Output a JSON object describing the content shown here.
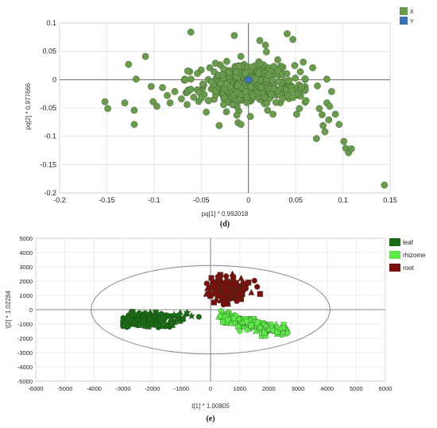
{
  "chart_data": [
    {
      "type": "scatter",
      "title": "",
      "caption": "(d)",
      "xlabel": "pq[1] * 0.992018",
      "ylabel": "pq[2] * 0.977666",
      "xlim": [
        -0.2,
        0.15
      ],
      "ylim": [
        -0.2,
        0.1
      ],
      "x_ticks": [
        "-0.2",
        "-0.15",
        "-0.1",
        "-0.05",
        "0",
        "0.05",
        "0.1",
        "0.15"
      ],
      "y_ticks": [
        "0.1",
        "0.05",
        "0",
        "-0.05",
        "-0.1",
        "-0.15",
        "-0.2"
      ],
      "grid": true,
      "legend_position": "top-right",
      "series": [
        {
          "name": "X",
          "color": "#6a9a4e",
          "marker": "circle",
          "points": [
            [
              -0.152,
              -0.039
            ],
            [
              -0.149,
              -0.051
            ],
            [
              -0.131,
              -0.041
            ],
            [
              -0.127,
              0.027
            ],
            [
              -0.121,
              -0.054
            ],
            [
              -0.121,
              -0.079
            ],
            [
              -0.119,
              0.001
            ],
            [
              -0.109,
              0.041
            ],
            [
              -0.103,
              -0.012
            ],
            [
              -0.101,
              -0.039
            ],
            [
              -0.097,
              -0.047
            ],
            [
              -0.091,
              -0.014
            ],
            [
              -0.086,
              -0.028
            ],
            [
              -0.083,
              -0.041
            ],
            [
              -0.078,
              -0.021
            ],
            [
              -0.071,
              -0.034
            ],
            [
              -0.065,
              -0.044
            ],
            [
              -0.061,
              -0.017
            ],
            [
              -0.061,
              0.001
            ],
            [
              -0.058,
              -0.031
            ],
            [
              -0.054,
              0.011
            ],
            [
              -0.061,
              0.084
            ],
            [
              -0.041,
              0.021
            ],
            [
              -0.035,
              0.029
            ],
            [
              -0.031,
              -0.081
            ],
            [
              -0.015,
              0.078
            ],
            [
              -0.011,
              -0.076
            ],
            [
              -0.008,
              -0.079
            ],
            [
              0.012,
              0.069
            ],
            [
              0.018,
              0.061
            ],
            [
              0.019,
              0.049
            ],
            [
              0.026,
              -0.061
            ],
            [
              0.031,
              0.035
            ],
            [
              0.041,
              0.081
            ],
            [
              0.047,
              0.071
            ],
            [
              0.049,
              0.025
            ],
            [
              0.051,
              -0.061
            ],
            [
              0.054,
              -0.051
            ],
            [
              0.058,
              0.031
            ],
            [
              0.061,
              -0.037
            ],
            [
              0.068,
              0.021
            ],
            [
              0.072,
              -0.104
            ],
            [
              0.073,
              -0.011
            ],
            [
              0.075,
              -0.051
            ],
            [
              0.078,
              -0.062
            ],
            [
              0.079,
              -0.081
            ],
            [
              0.081,
              -0.092
            ],
            [
              0.083,
              0.001
            ],
            [
              0.083,
              -0.041
            ],
            [
              0.086,
              -0.047
            ],
            [
              0.085,
              -0.071
            ],
            [
              0.088,
              -0.021
            ],
            [
              0.092,
              -0.061
            ],
            [
              0.096,
              -0.079
            ],
            [
              0.101,
              -0.109
            ],
            [
              0.103,
              -0.121
            ],
            [
              0.106,
              -0.129
            ],
            [
              0.109,
              -0.122
            ],
            [
              0.144,
              -0.186
            ]
          ]
        },
        {
          "name": "Y",
          "color": "#3a70b8",
          "marker": "circle",
          "points": [
            [
              0.0,
              0.0
            ]
          ]
        }
      ]
    },
    {
      "type": "scatter",
      "title": "",
      "caption": "(e)",
      "xlabel": "t[1] * 1.00805",
      "ylabel": "t[2] * 1.02284",
      "xlim": [
        -6000,
        6000
      ],
      "ylim": [
        -5000,
        5000
      ],
      "x_ticks": [
        "-6000",
        "-5000",
        "-4000",
        "-3000",
        "-2000",
        "-1000",
        "0",
        "1000",
        "2000",
        "3000",
        "4000",
        "5000",
        "6000"
      ],
      "y_ticks": [
        "5000",
        "4000",
        "3000",
        "2000",
        "1000",
        "0",
        "-1000",
        "-2000",
        "-3000",
        "-4000",
        "-5000"
      ],
      "grid": true,
      "legend_position": "top-right",
      "ellipse": {
        "rx": 4100,
        "ry": 3100
      },
      "series": [
        {
          "name": "leaf",
          "color": "#1a6b17",
          "markers": [
            "circle",
            "square",
            "triangle",
            "star"
          ],
          "cluster": {
            "cx": -2200,
            "cy": -700,
            "sx": 500,
            "sy": 250
          },
          "points": [
            [
              -2900,
              -780
            ],
            [
              -2800,
              -600
            ],
            [
              -2650,
              -950
            ],
            [
              -2500,
              -400
            ],
            [
              -2300,
              -900
            ],
            [
              -2100,
              -650
            ],
            [
              -2000,
              -1000
            ],
            [
              -1900,
              -450
            ],
            [
              -1700,
              -700
            ],
            [
              -1550,
              -400
            ],
            [
              -1400,
              -800
            ],
            [
              -1250,
              -350
            ],
            [
              -1100,
              -400
            ],
            [
              -950,
              -650
            ],
            [
              -850,
              -300
            ],
            [
              -650,
              -450
            ],
            [
              -400,
              -500
            ],
            [
              -2650,
              -350
            ],
            [
              -2450,
              -1100
            ],
            [
              -1850,
              -1050
            ],
            [
              -1600,
              -550
            ],
            [
              -1350,
              -950
            ],
            [
              -1050,
              -800
            ],
            [
              -800,
              -200
            ]
          ]
        },
        {
          "name": "rhizome",
          "color": "#5ee84a",
          "markers": [
            "circle",
            "square",
            "triangle"
          ],
          "cluster": {
            "cx": 1200,
            "cy": -1100,
            "sx": 500,
            "sy": 280
          },
          "points": [
            [
              500,
              -500
            ],
            [
              600,
              -700
            ],
            [
              700,
              -950
            ],
            [
              800,
              -600
            ],
            [
              950,
              -1200
            ],
            [
              1100,
              -850
            ],
            [
              1250,
              -1400
            ],
            [
              1400,
              -1100
            ],
            [
              1550,
              -1500
            ],
            [
              1700,
              -1250
            ],
            [
              1850,
              -1600
            ],
            [
              2000,
              -1350
            ],
            [
              2150,
              -1450
            ],
            [
              2300,
              -1550
            ],
            [
              2400,
              -1300
            ],
            [
              1000,
              -1500
            ],
            [
              1600,
              -900
            ],
            [
              1900,
              -1100
            ]
          ]
        },
        {
          "name": "root",
          "color": "#7a0f0f",
          "markers": [
            "circle",
            "square",
            "triangle"
          ],
          "cluster": {
            "cx": 600,
            "cy": 1300,
            "sx": 300,
            "sy": 430
          },
          "points": [
            [
              100,
              1100
            ],
            [
              150,
              1800
            ],
            [
              200,
              700
            ],
            [
              250,
              2300
            ],
            [
              400,
              1600
            ],
            [
              500,
              900
            ],
            [
              550,
              2000
            ],
            [
              650,
              1300
            ],
            [
              750,
              2500
            ],
            [
              850,
              1700
            ],
            [
              950,
              1000
            ],
            [
              1050,
              2200
            ],
            [
              1150,
              1400
            ],
            [
              1300,
              1900
            ],
            [
              1400,
              1200
            ],
            [
              1600,
              1600
            ],
            [
              1700,
              1100
            ],
            [
              600,
              400
            ],
            [
              900,
              600
            ]
          ]
        }
      ]
    }
  ]
}
